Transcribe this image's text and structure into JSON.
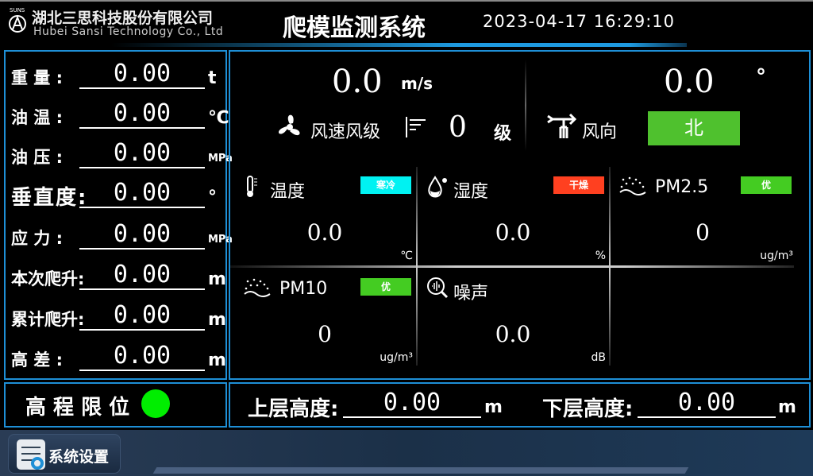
{
  "header": {
    "company_cn": "湖北三思科技股份有限公司",
    "company_en": "Hubei Sansi Technology Co., Ltd",
    "logo_text": "SUNS",
    "title": "爬模监测系统",
    "datetime": "2023-04-17 16:29:10"
  },
  "left_panel": {
    "rows": [
      {
        "label": "重 量 :",
        "value": "0.00",
        "unit": "t"
      },
      {
        "label": "油 温 :",
        "value": "0.00",
        "unit": "℃"
      },
      {
        "label": "油 压 :",
        "value": "0.00",
        "unit": "MPa"
      },
      {
        "label": "垂直度:",
        "value": "0.00",
        "unit": "°"
      },
      {
        "label": "应 力 :",
        "value": "0.00",
        "unit": "MPa"
      },
      {
        "label": "本次爬升:",
        "value": "0.00",
        "unit": "m"
      },
      {
        "label": "累计爬升:",
        "value": "0.00",
        "unit": "m"
      },
      {
        "label": "高 差 :",
        "value": "0.00",
        "unit": "m"
      }
    ]
  },
  "wind": {
    "speed": "0.0",
    "speed_unit": "m/s",
    "speed_label": "风速风级",
    "level": "0",
    "level_unit": "级",
    "direction_value": "0.0",
    "direction_unit": "°",
    "direction_label": "风向",
    "direction": "北",
    "direction_color": "#4fc12e"
  },
  "env": [
    {
      "title": "温度",
      "badge": "寒冷",
      "badge_color": "#00f2f2",
      "value": "0.0",
      "unit": "℃",
      "icon": "thermometer-icon"
    },
    {
      "title": "湿度",
      "badge": "干燥",
      "badge_color": "#ff4020",
      "value": "0.0",
      "unit": "%",
      "icon": "water-drop-icon"
    },
    {
      "title": "PM2.5",
      "badge": "优",
      "badge_color": "#44cc22",
      "value": "0",
      "unit": "ug/m³",
      "icon": "dust-icon"
    },
    {
      "title": "PM10",
      "badge": "优",
      "badge_color": "#44cc22",
      "value": "0",
      "unit": "ug/m³",
      "icon": "dust-icon"
    },
    {
      "title": "噪声",
      "value": "0.0",
      "unit": "dB",
      "icon": "noise-icon"
    }
  ],
  "limit": {
    "label": "高 程 限 位",
    "status_color": "#00ee00"
  },
  "heights": {
    "upper_label": "上层高度:",
    "upper_value": "0.00",
    "upper_unit": "m",
    "lower_label": "下层高度:",
    "lower_value": "0.00",
    "lower_unit": "m"
  },
  "footer": {
    "settings_label": "系统设置"
  }
}
